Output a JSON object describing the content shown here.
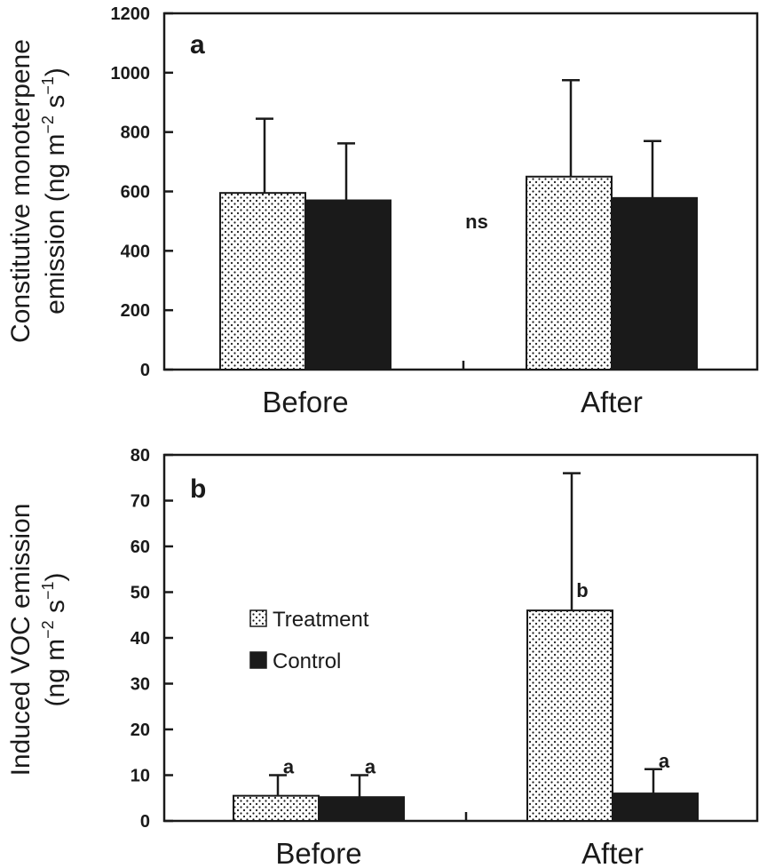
{
  "colors": {
    "treatment_fill": "dotted-pattern",
    "control_fill": "#1a1a1a",
    "axis": "#1a1a1a"
  },
  "legend": {
    "placement": "center-left of panel b",
    "entries": [
      {
        "label": "Treatment",
        "icon": "dotted-square-icon"
      },
      {
        "label": "Control",
        "icon": "solid-square-icon"
      }
    ]
  },
  "chart_data": [
    {
      "type": "bar",
      "panel": "a",
      "categories": [
        "Before",
        "After"
      ],
      "series": [
        {
          "name": "Treatment",
          "values": [
            595,
            650
          ],
          "error_upper": [
            845,
            975
          ]
        },
        {
          "name": "Control",
          "values": [
            570,
            578
          ],
          "error_upper": [
            762,
            770
          ]
        }
      ],
      "ylabel_line1": "Constitutive monoterpene",
      "ylabel_line2": "emission (ng m",
      "ylabel_unit_exp1": "−2",
      "ylabel_unit_mid": " s",
      "ylabel_unit_exp2": "−1",
      "ylabel_unit_end": ")",
      "ylim": [
        0,
        1200
      ],
      "yticks": [
        "0",
        "200",
        "400",
        "600",
        "800",
        "1000",
        "1200"
      ],
      "annotations": [
        "ns"
      ],
      "grid": false
    },
    {
      "type": "bar",
      "panel": "b",
      "categories": [
        "Before",
        "After"
      ],
      "series": [
        {
          "name": "Treatment",
          "values": [
            5.5,
            46
          ],
          "error_upper": [
            10,
            76
          ],
          "letters": [
            "a",
            "b"
          ]
        },
        {
          "name": "Control",
          "values": [
            5.2,
            6
          ],
          "error_upper": [
            10,
            11.3
          ],
          "letters": [
            "a",
            "a"
          ]
        }
      ],
      "ylabel_line1": "Induced VOC emission",
      "ylabel_line2": "(ng m",
      "ylabel_unit_exp1": "−2",
      "ylabel_unit_mid": " s",
      "ylabel_unit_exp2": "−1",
      "ylabel_unit_end": ")",
      "ylim": [
        0,
        80
      ],
      "yticks": [
        "0",
        "10",
        "20",
        "30",
        "40",
        "50",
        "60",
        "70",
        "80"
      ],
      "grid": false
    }
  ]
}
